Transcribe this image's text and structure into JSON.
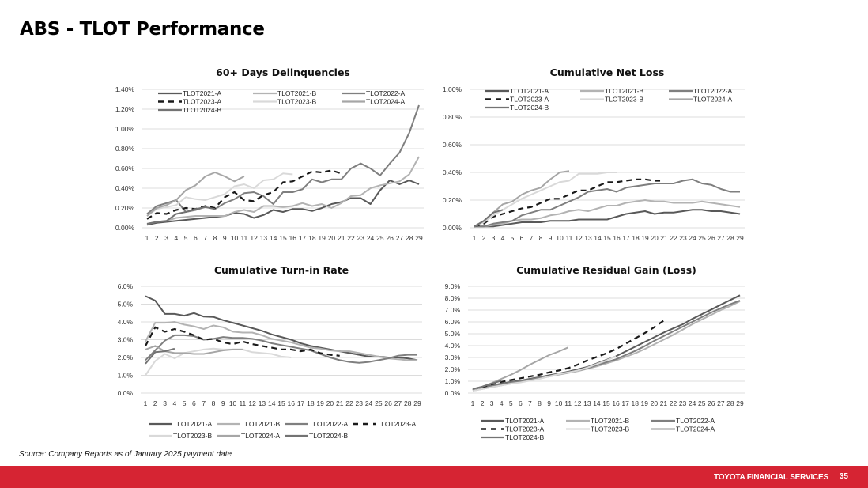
{
  "page": {
    "title": "ABS - TLOT Performance",
    "source": "Source: Company Reports as of January 2025 payment date",
    "footer_brand": "TOYOTA FINANCIAL SERVICES",
    "page_number": "35"
  },
  "series_styles": {
    "TLOT2021-A": {
      "color": "#595959",
      "dash": false
    },
    "TLOT2021-B": {
      "color": "#b3b3b3",
      "dash": false
    },
    "TLOT2022-A": {
      "color": "#7f7f7f",
      "dash": false
    },
    "TLOT2023-A": {
      "color": "#1a1a1a",
      "dash": true
    },
    "TLOT2023-B": {
      "color": "#d9d9d9",
      "dash": false
    },
    "TLOT2024-A": {
      "color": "#a6a6a6",
      "dash": false
    },
    "TLOT2024-B": {
      "color": "#737373",
      "dash": false
    }
  },
  "chart_data": [
    {
      "id": "delinquencies",
      "type": "line",
      "title": "60+ Days Delinquencies",
      "xlabel": "",
      "ylabel": "",
      "ylim": [
        0,
        1.4
      ],
      "yticks": [
        "0.00%",
        "0.20%",
        "0.40%",
        "0.60%",
        "0.80%",
        "1.00%",
        "1.20%",
        "1.40%"
      ],
      "ytick_values": [
        0,
        0.2,
        0.4,
        0.6,
        0.8,
        1.0,
        1.2,
        1.4
      ],
      "x": [
        1,
        2,
        3,
        4,
        5,
        6,
        7,
        8,
        9,
        10,
        11,
        12,
        13,
        14,
        15,
        16,
        17,
        18,
        19,
        20,
        21,
        22,
        23,
        24,
        25,
        26,
        27,
        28,
        29
      ],
      "grid": true,
      "legend": "top-left",
      "series": [
        {
          "name": "TLOT2021-A",
          "values": [
            0.03,
            0.05,
            0.06,
            0.07,
            0.08,
            0.09,
            0.1,
            0.11,
            0.12,
            0.15,
            0.14,
            0.1,
            0.13,
            0.18,
            0.16,
            0.19,
            0.19,
            0.17,
            0.2,
            0.24,
            0.26,
            0.3,
            0.3,
            0.24,
            0.38,
            0.48,
            0.44,
            0.48,
            0.44
          ]
        },
        {
          "name": "TLOT2021-B",
          "values": [
            0.04,
            0.06,
            0.07,
            0.1,
            0.11,
            0.12,
            0.12,
            0.12,
            0.12,
            0.16,
            0.18,
            0.16,
            0.22,
            0.22,
            0.21,
            0.22,
            0.25,
            0.22,
            0.24,
            0.2,
            0.25,
            0.32,
            0.33,
            0.4,
            0.43,
            0.45,
            0.47,
            0.54,
            0.72
          ]
        },
        {
          "name": "TLOT2022-A",
          "values": [
            0.14,
            0.22,
            0.25,
            0.28,
            0.16,
            0.18,
            0.21,
            0.19,
            0.25,
            0.29,
            0.35,
            0.36,
            0.32,
            0.24,
            0.36,
            0.36,
            0.39,
            0.49,
            0.46,
            0.49,
            0.49,
            0.6,
            0.65,
            0.6,
            0.53,
            0.65,
            0.76,
            0.96,
            1.24
          ]
        },
        {
          "name": "TLOT2023-A",
          "values": [
            0.09,
            0.15,
            0.14,
            0.18,
            0.2,
            0.19,
            0.22,
            0.2,
            0.31,
            0.36,
            0.28,
            0.27,
            0.33,
            0.36,
            0.46,
            0.47,
            0.52,
            0.57,
            0.56,
            0.58,
            0.55
          ]
        },
        {
          "name": "TLOT2023-B",
          "values": [
            0.12,
            0.19,
            0.21,
            0.23,
            0.31,
            0.29,
            0.28,
            0.31,
            0.34,
            0.42,
            0.44,
            0.4,
            0.48,
            0.49,
            0.55,
            0.54
          ]
        },
        {
          "name": "TLOT2024-A",
          "values": [
            0.12,
            0.2,
            0.23,
            0.28,
            0.38,
            0.43,
            0.52,
            0.56,
            0.52,
            0.47,
            0.52
          ]
        },
        {
          "name": "TLOT2024-B",
          "values": [
            0.04,
            0.06,
            0.07,
            0.14,
            0.16,
            0.19,
            0.21,
            0.19
          ]
        }
      ]
    },
    {
      "id": "net-loss",
      "type": "line",
      "title": "Cumulative Net Loss",
      "xlabel": "",
      "ylabel": "",
      "ylim": [
        0,
        1.0
      ],
      "yticks": [
        "0.00%",
        "0.20%",
        "0.40%",
        "0.60%",
        "0.80%",
        "1.00%"
      ],
      "ytick_values": [
        0,
        0.2,
        0.4,
        0.6,
        0.8,
        1.0
      ],
      "x": [
        1,
        2,
        3,
        4,
        5,
        6,
        7,
        8,
        9,
        10,
        11,
        12,
        13,
        14,
        15,
        16,
        17,
        18,
        19,
        20,
        21,
        22,
        23,
        24,
        25,
        26,
        27,
        28,
        29
      ],
      "grid": true,
      "legend": "top-left",
      "series": [
        {
          "name": "TLOT2021-A",
          "values": [
            0.01,
            0.01,
            0.01,
            0.02,
            0.03,
            0.04,
            0.04,
            0.04,
            0.05,
            0.05,
            0.05,
            0.06,
            0.06,
            0.06,
            0.06,
            0.08,
            0.1,
            0.11,
            0.12,
            0.1,
            0.11,
            0.11,
            0.12,
            0.13,
            0.13,
            0.12,
            0.12,
            0.11,
            0.1
          ]
        },
        {
          "name": "TLOT2021-B",
          "values": [
            0.01,
            0.01,
            0.02,
            0.03,
            0.05,
            0.06,
            0.06,
            0.07,
            0.09,
            0.1,
            0.12,
            0.13,
            0.12,
            0.14,
            0.16,
            0.16,
            0.18,
            0.19,
            0.2,
            0.19,
            0.19,
            0.18,
            0.18,
            0.18,
            0.19,
            0.18,
            0.17,
            0.16,
            0.15
          ]
        },
        {
          "name": "TLOT2022-A",
          "values": [
            0.01,
            0.01,
            0.03,
            0.04,
            0.05,
            0.09,
            0.11,
            0.13,
            0.13,
            0.16,
            0.19,
            0.22,
            0.26,
            0.27,
            0.28,
            0.26,
            0.29,
            0.3,
            0.31,
            0.32,
            0.32,
            0.32,
            0.34,
            0.35,
            0.32,
            0.31,
            0.28,
            0.26,
            0.26
          ]
        },
        {
          "name": "TLOT2023-A",
          "values": [
            0.01,
            0.03,
            0.08,
            0.1,
            0.12,
            0.14,
            0.15,
            0.18,
            0.21,
            0.21,
            0.24,
            0.27,
            0.27,
            0.3,
            0.33,
            0.33,
            0.34,
            0.35,
            0.35,
            0.34,
            0.34
          ]
        },
        {
          "name": "TLOT2023-B",
          "values": [
            0.01,
            0.04,
            0.09,
            0.13,
            0.17,
            0.21,
            0.24,
            0.27,
            0.3,
            0.33,
            0.34,
            0.39,
            0.39,
            0.39,
            0.4,
            0.4
          ]
        },
        {
          "name": "TLOT2024-A",
          "values": [
            0.01,
            0.05,
            0.11,
            0.17,
            0.19,
            0.24,
            0.27,
            0.29,
            0.35,
            0.4,
            0.41
          ]
        },
        {
          "name": "TLOT2024-B",
          "values": [
            0.01,
            0.05,
            0.11,
            0.13
          ]
        }
      ]
    },
    {
      "id": "turn-in-rate",
      "type": "line",
      "title": "Cumulative Turn-in Rate",
      "xlabel": "",
      "ylabel": "",
      "ylim": [
        0,
        6.0
      ],
      "yticks": [
        "0.0%",
        "1.0%",
        "2.0%",
        "3.0%",
        "4.0%",
        "5.0%",
        "6.0%"
      ],
      "ytick_values": [
        0,
        1,
        2,
        3,
        4,
        5,
        6
      ],
      "x": [
        1,
        2,
        3,
        4,
        5,
        6,
        7,
        8,
        9,
        10,
        11,
        12,
        13,
        14,
        15,
        16,
        17,
        18,
        19,
        20,
        21,
        22,
        23,
        24,
        25,
        26,
        27,
        28,
        29
      ],
      "grid": true,
      "legend": "bottom",
      "series": [
        {
          "name": "TLOT2021-A",
          "values": [
            5.45,
            5.2,
            4.45,
            4.45,
            4.35,
            4.5,
            4.3,
            4.28,
            4.1,
            3.95,
            3.8,
            3.65,
            3.5,
            3.3,
            3.15,
            3.0,
            2.8,
            2.65,
            2.55,
            2.45,
            2.35,
            2.25,
            2.15,
            2.05,
            2.05,
            2.0,
            2.0,
            1.95,
            1.85
          ]
        },
        {
          "name": "TLOT2021-B",
          "values": [
            2.9,
            3.95,
            3.95,
            4.0,
            3.85,
            3.75,
            3.6,
            3.8,
            3.7,
            3.45,
            3.4,
            3.4,
            3.25,
            3.05,
            2.95,
            2.85,
            2.7,
            2.55,
            2.5,
            2.4,
            2.35,
            2.35,
            2.25,
            2.15,
            2.05,
            1.95,
            1.9,
            1.85,
            1.85
          ]
        },
        {
          "name": "TLOT2022-A",
          "values": [
            1.85,
            2.4,
            2.95,
            3.25,
            3.25,
            3.2,
            3.0,
            3.05,
            3.15,
            3.1,
            3.1,
            3.05,
            2.95,
            2.8,
            2.7,
            2.6,
            2.5,
            2.4,
            2.2,
            2.0,
            1.85,
            1.75,
            1.7,
            1.75,
            1.85,
            1.95,
            2.1,
            2.15,
            2.15
          ]
        },
        {
          "name": "TLOT2023-A",
          "values": [
            2.65,
            3.7,
            3.45,
            3.6,
            3.45,
            3.25,
            3.0,
            3.05,
            2.85,
            2.75,
            2.9,
            2.75,
            2.65,
            2.55,
            2.45,
            2.45,
            2.35,
            2.45,
            2.25,
            2.15,
            2.1
          ]
        },
        {
          "name": "TLOT2023-B",
          "values": [
            1.0,
            1.8,
            2.2,
            1.95,
            2.25,
            2.35,
            2.45,
            2.5,
            2.45,
            2.45,
            2.45,
            2.3,
            2.25,
            2.2,
            2.05,
            2.0
          ]
        },
        {
          "name": "TLOT2024-A",
          "values": [
            2.45,
            2.65,
            2.35,
            2.25,
            2.25,
            2.2,
            2.2,
            2.3,
            2.4,
            2.45,
            2.45
          ]
        },
        {
          "name": "TLOT2024-B",
          "values": [
            1.65,
            2.3,
            2.35,
            2.5
          ]
        }
      ]
    },
    {
      "id": "residual-gain",
      "type": "line",
      "title": "Cumulative Residual Gain (Loss)",
      "xlabel": "",
      "ylabel": "",
      "ylim": [
        0,
        9.0
      ],
      "yticks": [
        "0.0%",
        "1.0%",
        "2.0%",
        "3.0%",
        "4.0%",
        "5.0%",
        "6.0%",
        "7.0%",
        "8.0%",
        "9.0%"
      ],
      "ytick_values": [
        0,
        1,
        2,
        3,
        4,
        5,
        6,
        7,
        8,
        9
      ],
      "x": [
        1,
        2,
        3,
        4,
        5,
        6,
        7,
        8,
        9,
        10,
        11,
        12,
        13,
        14,
        15,
        16,
        17,
        18,
        19,
        20,
        21,
        22,
        23,
        24,
        25,
        26,
        27,
        28,
        29
      ],
      "grid": true,
      "legend": "bottom",
      "series": [
        {
          "name": "TLOT2021-A",
          "values": [
            0.35,
            0.5,
            0.65,
            0.8,
            0.95,
            1.05,
            1.2,
            1.35,
            1.5,
            1.65,
            1.8,
            2.0,
            2.2,
            2.5,
            2.8,
            3.1,
            3.5,
            3.9,
            4.3,
            4.7,
            5.1,
            5.45,
            5.8,
            6.25,
            6.65,
            7.05,
            7.45,
            7.85,
            8.25
          ]
        },
        {
          "name": "TLOT2021-B",
          "values": [
            0.2,
            0.35,
            0.5,
            0.65,
            0.8,
            0.95,
            1.1,
            1.25,
            1.4,
            1.55,
            1.7,
            1.85,
            2.05,
            2.25,
            2.5,
            2.75,
            3.05,
            3.35,
            3.7,
            4.1,
            4.5,
            4.9,
            5.35,
            5.8,
            6.2,
            6.6,
            7.0,
            7.35,
            7.75
          ]
        },
        {
          "name": "TLOT2022-A",
          "values": [
            0.3,
            0.45,
            0.6,
            0.75,
            0.9,
            1.0,
            1.15,
            1.3,
            1.45,
            1.6,
            1.75,
            1.9,
            2.1,
            2.35,
            2.6,
            2.85,
            3.2,
            3.55,
            3.95,
            4.4,
            4.8,
            5.2,
            5.6,
            6.0,
            6.4,
            6.8,
            7.15,
            7.5,
            7.8
          ]
        },
        {
          "name": "TLOT2023-A",
          "values": [
            0.25,
            0.5,
            0.75,
            0.95,
            1.1,
            1.25,
            1.4,
            1.55,
            1.75,
            1.9,
            2.1,
            2.4,
            2.75,
            3.05,
            3.35,
            3.7,
            4.15,
            4.6,
            5.05,
            5.55,
            6.1
          ]
        },
        {
          "name": "TLOT2023-B",
          "values": [
            0.2,
            0.35,
            0.5,
            0.65,
            0.8,
            0.9,
            1.05,
            1.2,
            1.4,
            1.6,
            1.75,
            1.9,
            2.15,
            2.45,
            2.75,
            3.1
          ]
        },
        {
          "name": "TLOT2024-A",
          "values": [
            0.3,
            0.55,
            0.85,
            1.2,
            1.55,
            1.95,
            2.4,
            2.8,
            3.2,
            3.5,
            3.85
          ]
        },
        {
          "name": "TLOT2024-B",
          "values": [
            0.35,
            0.55,
            0.8,
            1.05
          ]
        }
      ]
    }
  ]
}
